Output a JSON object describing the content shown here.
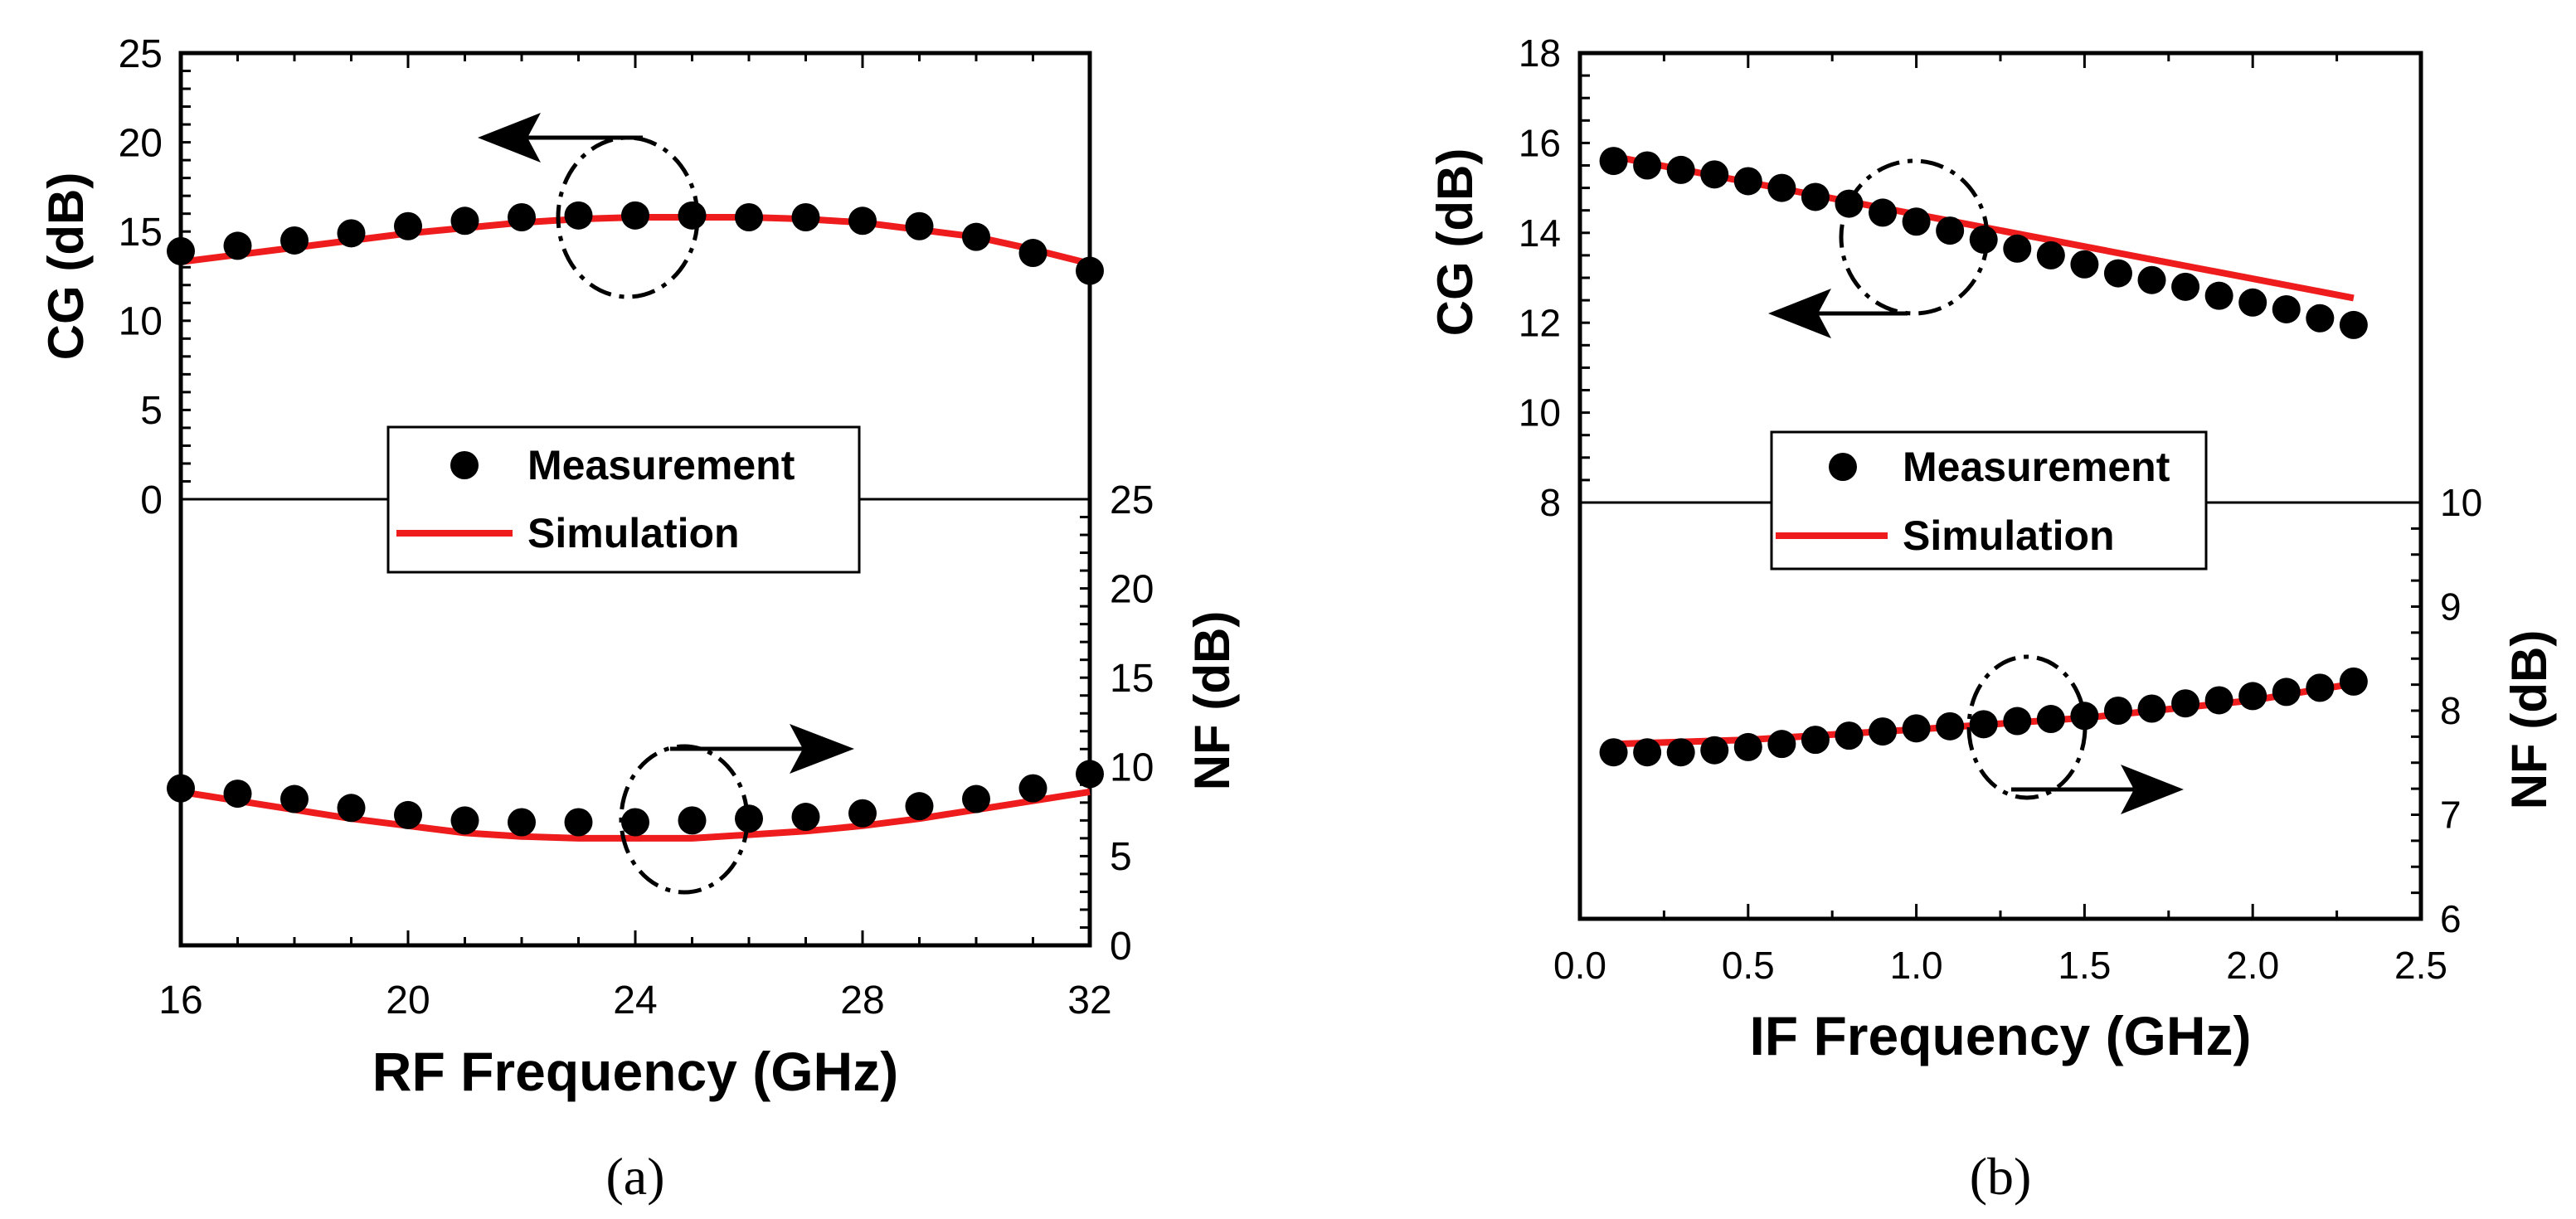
{
  "colors": {
    "measurement": "#000000",
    "simulation": "#ee1c1c",
    "axis": "#000000"
  },
  "chart_data": [
    {
      "panel": "a",
      "caption": "(a)",
      "type": "line",
      "xlabel": "RF Frequency (GHz)",
      "xlim": [
        16,
        32
      ],
      "x_ticks": [
        16,
        20,
        24,
        28,
        32
      ],
      "y_left_label": "CG (dB)",
      "y_left_ticks": [
        0,
        5,
        10,
        15,
        20,
        25
      ],
      "y_right_label": "NF (dB)",
      "y_right_ticks": [
        0,
        5,
        10,
        15,
        20,
        25
      ],
      "legend": {
        "position": "center",
        "entries": [
          "Measurement",
          "Simulation"
        ]
      },
      "series": [
        {
          "name": "Measurement",
          "axis": "CG",
          "marker": "circle",
          "x": [
            16,
            17,
            18,
            19,
            20,
            21,
            22,
            23,
            24,
            25,
            26,
            27,
            28,
            29,
            30,
            31,
            32
          ],
          "y": [
            13.9,
            14.2,
            14.5,
            14.9,
            15.3,
            15.6,
            15.8,
            15.9,
            15.9,
            15.9,
            15.8,
            15.8,
            15.6,
            15.3,
            14.7,
            13.8,
            12.8
          ]
        },
        {
          "name": "Simulation",
          "axis": "CG",
          "marker": "line",
          "x": [
            16,
            17,
            18,
            19,
            20,
            21,
            22,
            23,
            24,
            25,
            26,
            27,
            28,
            29,
            30,
            31,
            32
          ],
          "y": [
            13.3,
            13.7,
            14.1,
            14.5,
            14.9,
            15.2,
            15.5,
            15.7,
            15.8,
            15.8,
            15.8,
            15.7,
            15.5,
            15.1,
            14.7,
            14.0,
            13.2
          ]
        },
        {
          "name": "Measurement",
          "axis": "NF",
          "marker": "circle",
          "x": [
            16,
            17,
            18,
            19,
            20,
            21,
            22,
            23,
            24,
            25,
            26,
            27,
            28,
            29,
            30,
            31,
            32
          ],
          "y": [
            8.8,
            8.5,
            8.2,
            7.7,
            7.3,
            7.0,
            6.9,
            6.9,
            6.9,
            7.0,
            7.1,
            7.2,
            7.4,
            7.8,
            8.2,
            8.8,
            9.6
          ]
        },
        {
          "name": "Simulation",
          "axis": "NF",
          "marker": "line",
          "x": [
            16,
            17,
            18,
            19,
            20,
            21,
            22,
            23,
            24,
            25,
            26,
            27,
            28,
            29,
            30,
            31,
            32
          ],
          "y": [
            8.6,
            8.1,
            7.6,
            7.1,
            6.7,
            6.3,
            6.1,
            6.0,
            6.0,
            6.0,
            6.2,
            6.4,
            6.7,
            7.1,
            7.6,
            8.1,
            8.6
          ]
        }
      ]
    },
    {
      "panel": "b",
      "caption": "(b)",
      "type": "line",
      "xlabel": "IF Frequency (GHz)",
      "xlim": [
        0.0,
        2.5
      ],
      "x_ticks": [
        "0.0",
        "0.5",
        "1.0",
        "1.5",
        "2.0",
        "2.5"
      ],
      "y_left_label": "CG (dB)",
      "y_left_ticks": [
        8,
        10,
        12,
        14,
        16,
        18
      ],
      "y_right_label": "NF (dB)",
      "y_right_ticks": [
        6,
        7,
        8,
        9,
        10
      ],
      "legend": {
        "position": "center",
        "entries": [
          "Measurement",
          "Simulation"
        ]
      },
      "series": [
        {
          "name": "Measurement",
          "axis": "CG",
          "marker": "circle",
          "x": [
            0.1,
            0.2,
            0.3,
            0.4,
            0.5,
            0.6,
            0.7,
            0.8,
            0.9,
            1.0,
            1.1,
            1.2,
            1.3,
            1.4,
            1.5,
            1.6,
            1.7,
            1.8,
            1.9,
            2.0,
            2.1,
            2.2,
            2.3
          ],
          "y": [
            15.6,
            15.5,
            15.4,
            15.3,
            15.15,
            15.0,
            14.8,
            14.65,
            14.45,
            14.25,
            14.05,
            13.85,
            13.65,
            13.5,
            13.3,
            13.1,
            12.95,
            12.8,
            12.6,
            12.45,
            12.3,
            12.1,
            11.95
          ]
        },
        {
          "name": "Simulation",
          "axis": "CG",
          "marker": "line",
          "x": [
            0.1,
            2.3
          ],
          "y": [
            15.7,
            12.55
          ]
        },
        {
          "name": "Measurement",
          "axis": "NF",
          "marker": "circle",
          "x": [
            0.1,
            0.2,
            0.3,
            0.4,
            0.5,
            0.6,
            0.7,
            0.8,
            0.9,
            1.0,
            1.1,
            1.2,
            1.3,
            1.4,
            1.5,
            1.6,
            1.7,
            1.8,
            1.9,
            2.0,
            2.1,
            2.2,
            2.3
          ],
          "y": [
            7.6,
            7.6,
            7.6,
            7.62,
            7.65,
            7.68,
            7.72,
            7.76,
            7.8,
            7.83,
            7.85,
            7.87,
            7.9,
            7.92,
            7.95,
            8.0,
            8.02,
            8.07,
            8.1,
            8.14,
            8.18,
            8.22,
            8.28
          ]
        },
        {
          "name": "Simulation",
          "axis": "NF",
          "marker": "line",
          "x": [
            0.1,
            0.5,
            1.0,
            1.5,
            2.0,
            2.3
          ],
          "y": [
            7.68,
            7.72,
            7.82,
            7.93,
            8.1,
            8.26
          ]
        }
      ]
    }
  ]
}
